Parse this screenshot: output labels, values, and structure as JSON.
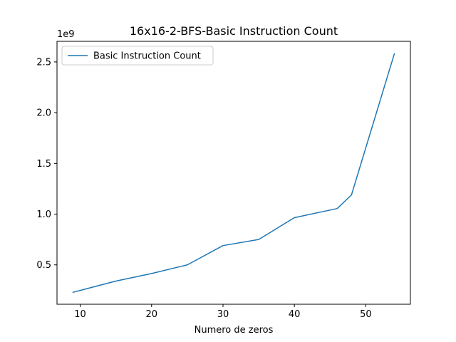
{
  "chart_data": {
    "type": "line",
    "title": "16x16-2-BFS-Basic Instruction Count",
    "xlabel": "Numero de zeros",
    "ylabel": "",
    "y_offset_label": "1e9",
    "xlim": [
      6.75,
      56.25
    ],
    "ylim": [
      0.112,
      2.703
    ],
    "x_ticks": [
      10,
      20,
      30,
      40,
      50
    ],
    "x_tick_labels": [
      "10",
      "20",
      "30",
      "40",
      "50"
    ],
    "y_ticks": [
      0.5,
      1.0,
      1.5,
      2.0,
      2.5
    ],
    "y_tick_labels": [
      "0.5",
      "1.0",
      "1.5",
      "2.0",
      "2.5"
    ],
    "grid": false,
    "legend_position": "upper-left",
    "series": [
      {
        "name": "Basic Instruction Count",
        "color": "#1f77b4",
        "x": [
          9,
          15,
          20,
          25,
          30,
          35,
          40,
          46,
          48,
          54
        ],
        "y": [
          0.23,
          0.34,
          0.415,
          0.5,
          0.69,
          0.75,
          0.965,
          1.055,
          1.19,
          2.58
        ]
      }
    ]
  }
}
